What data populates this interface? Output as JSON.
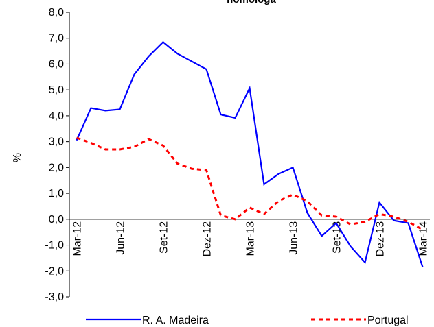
{
  "chart_data": {
    "type": "line",
    "title": "homóloga",
    "y_label": "%",
    "categories": [
      "Mar-12",
      null,
      null,
      "Jun-12",
      null,
      null,
      "Set-12",
      null,
      null,
      "Dez-12",
      null,
      null,
      "Mar-13",
      null,
      null,
      "Jun-13",
      null,
      null,
      "Set-13",
      null,
      null,
      "Dez-13",
      null,
      null,
      "Mar-14"
    ],
    "series": [
      {
        "name": "R. A. Madeira",
        "color": "#0000ff",
        "dash": "solid",
        "values": [
          3.05,
          4.3,
          4.2,
          4.25,
          5.6,
          6.3,
          6.85,
          6.4,
          6.1,
          5.8,
          4.05,
          3.92,
          5.07,
          1.35,
          1.75,
          2.0,
          0.25,
          -0.65,
          -0.15,
          -1.05,
          -1.67,
          0.65,
          -0.05,
          -0.15,
          -1.85
        ]
      },
      {
        "name": "Portugal",
        "color": "#ff0000",
        "dash": "dashed",
        "values": [
          3.15,
          2.95,
          2.7,
          2.7,
          2.8,
          3.1,
          2.85,
          2.15,
          1.95,
          1.9,
          0.15,
          0.0,
          0.45,
          0.2,
          0.7,
          0.95,
          0.7,
          0.15,
          0.1,
          -0.2,
          -0.1,
          0.2,
          0.1,
          -0.1,
          -0.4
        ]
      }
    ],
    "ylim": [
      -3,
      8
    ],
    "yticks": [
      {
        "value": -3,
        "label": "-3,0"
      },
      {
        "value": -2,
        "label": "-2,0"
      },
      {
        "value": -1,
        "label": "-1,0"
      },
      {
        "value": 0,
        "label": "0,0"
      },
      {
        "value": 1,
        "label": "1,0"
      },
      {
        "value": 2,
        "label": "2,0"
      },
      {
        "value": 3,
        "label": "3,0"
      },
      {
        "value": 4,
        "label": "4,0"
      },
      {
        "value": 5,
        "label": "5,0"
      },
      {
        "value": 6,
        "label": "6,0"
      },
      {
        "value": 7,
        "label": "7,0"
      },
      {
        "value": 8,
        "label": "8,0"
      }
    ],
    "grid": false,
    "legend": "bottom"
  }
}
